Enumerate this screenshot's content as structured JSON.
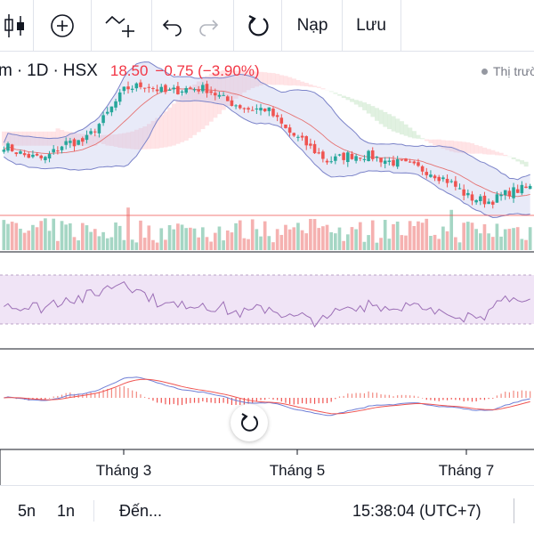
{
  "toolbar": {
    "load_label": "Nạp",
    "save_label": "Lưu"
  },
  "symbol": {
    "partial_name": "m",
    "interval": "1D",
    "exchange": "HSX",
    "price": "18.50",
    "change": "−0.75 (−3.90%)"
  },
  "market_status": "Thị trường",
  "x_axis": {
    "labels": [
      "Tháng 3",
      "Tháng 5",
      "Tháng 7"
    ]
  },
  "bottom_bar": {
    "range_5y": "5n",
    "range_1y": "1n",
    "goto": "Đến...",
    "clock": "15:38:04 (UTC+7)"
  },
  "colors": {
    "up": "#26a69a",
    "down": "#ef5350",
    "bollinger": "#7b83c9",
    "rsi": "#9c6fb6",
    "macd": "#6f7fd6",
    "signal": "#ef5350"
  },
  "chart_data": {
    "type": "candlestick",
    "price_anchors": [
      16.8,
      16.3,
      16.1,
      16.9,
      17.0,
      18.2,
      19.6,
      19.8,
      19.4,
      19.6,
      19.6,
      19.0,
      18.6,
      18.6,
      17.5,
      16.8,
      16.0,
      16.3,
      16.3,
      16.0,
      15.8,
      15.5,
      15.0,
      14.2,
      14.0,
      14.5,
      14.7
    ],
    "last_price": 18.5,
    "price_line": 13.9,
    "indicators": [
      "Bollinger Bands",
      "Ichimoku Cloud",
      "Volume",
      "RSI",
      "MACD"
    ]
  }
}
